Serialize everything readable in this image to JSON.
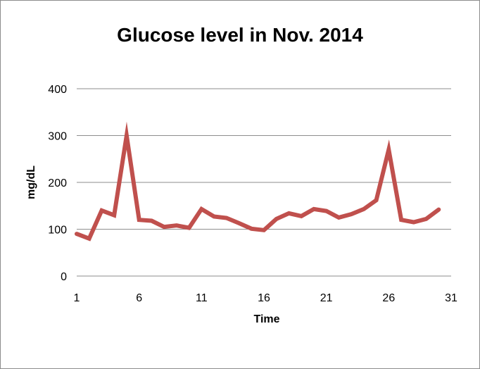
{
  "chart_data": {
    "type": "line",
    "title": "Glucose level in Nov. 2014",
    "xlabel": "Time",
    "ylabel": "mg/dL",
    "xlim": [
      1,
      31
    ],
    "ylim": [
      0,
      400
    ],
    "x_ticks": [
      1,
      6,
      11,
      16,
      21,
      26,
      31
    ],
    "y_ticks": [
      0,
      100,
      200,
      300,
      400
    ],
    "grid": true,
    "legend": "none",
    "series": [
      {
        "color": "#c0504d",
        "x": [
          1,
          2,
          3,
          4,
          5,
          6,
          7,
          8,
          9,
          10,
          11,
          12,
          13,
          14,
          15,
          16,
          17,
          18,
          19,
          20,
          21,
          22,
          23,
          24,
          25,
          26,
          27,
          28,
          29,
          30
        ],
        "values": [
          90,
          80,
          140,
          130,
          300,
          120,
          118,
          105,
          108,
          103,
          143,
          127,
          124,
          113,
          101,
          98,
          122,
          134,
          128,
          143,
          139,
          125,
          132,
          143,
          162,
          270,
          120,
          115,
          122,
          142
        ]
      }
    ]
  }
}
